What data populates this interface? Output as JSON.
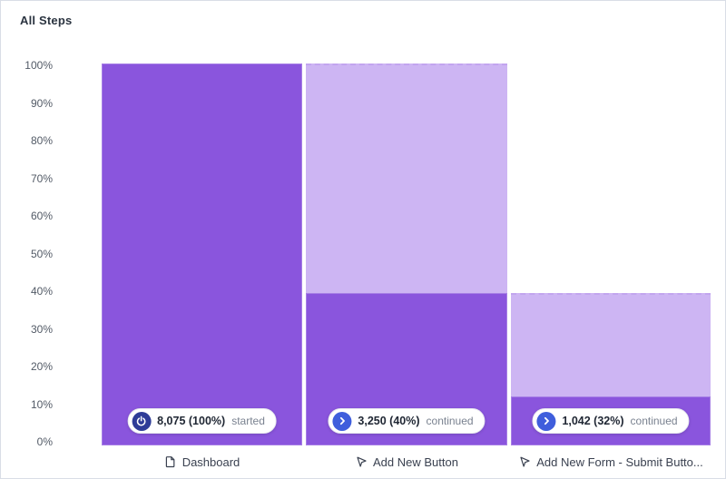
{
  "card": {
    "title": "All Steps"
  },
  "colors": {
    "bar_dark": "#8a55dd",
    "bar_light": "#cdb5f3",
    "badge_icon_started": "#2e3c97",
    "badge_icon_continued": "#3f5edc",
    "card_border": "#d9dde6"
  },
  "y_axis": {
    "tick_labels": [
      "100%",
      "90%",
      "80%",
      "70%",
      "60%",
      "50%",
      "40%",
      "30%",
      "20%",
      "10%",
      "0%"
    ]
  },
  "chart_data": {
    "type": "bar",
    "title": "All Steps",
    "xlabel": "",
    "ylabel": "",
    "ylim": [
      0,
      100
    ],
    "grid": false,
    "categories": [
      "Dashboard",
      "Add New Button",
      "Add New Form - Submit Butto..."
    ],
    "series": [
      {
        "name": "completed_pct_of_total",
        "values": [
          100,
          40,
          12.9
        ]
      },
      {
        "name": "previous_step_pct_of_total",
        "values": [
          100,
          100,
          40
        ]
      }
    ],
    "steps": [
      {
        "label": "Dashboard",
        "label_icon": "document-icon",
        "count_label": "8,075 (100%)",
        "status": "started",
        "badge_icon": "power-icon",
        "bar_top_pct": 100,
        "overlay_top_pct": 100
      },
      {
        "label": "Add New Button",
        "label_icon": "cursor-icon",
        "count_label": "3,250 (40%)",
        "status": "continued",
        "badge_icon": "chevron-right-icon",
        "bar_top_pct": 40,
        "overlay_top_pct": 100
      },
      {
        "label": "Add New Form - Submit Butto...",
        "label_icon": "cursor-icon",
        "count_label": "1,042 (32%)",
        "status": "continued",
        "badge_icon": "chevron-right-icon",
        "bar_top_pct": 12.9,
        "overlay_top_pct": 40
      }
    ]
  }
}
